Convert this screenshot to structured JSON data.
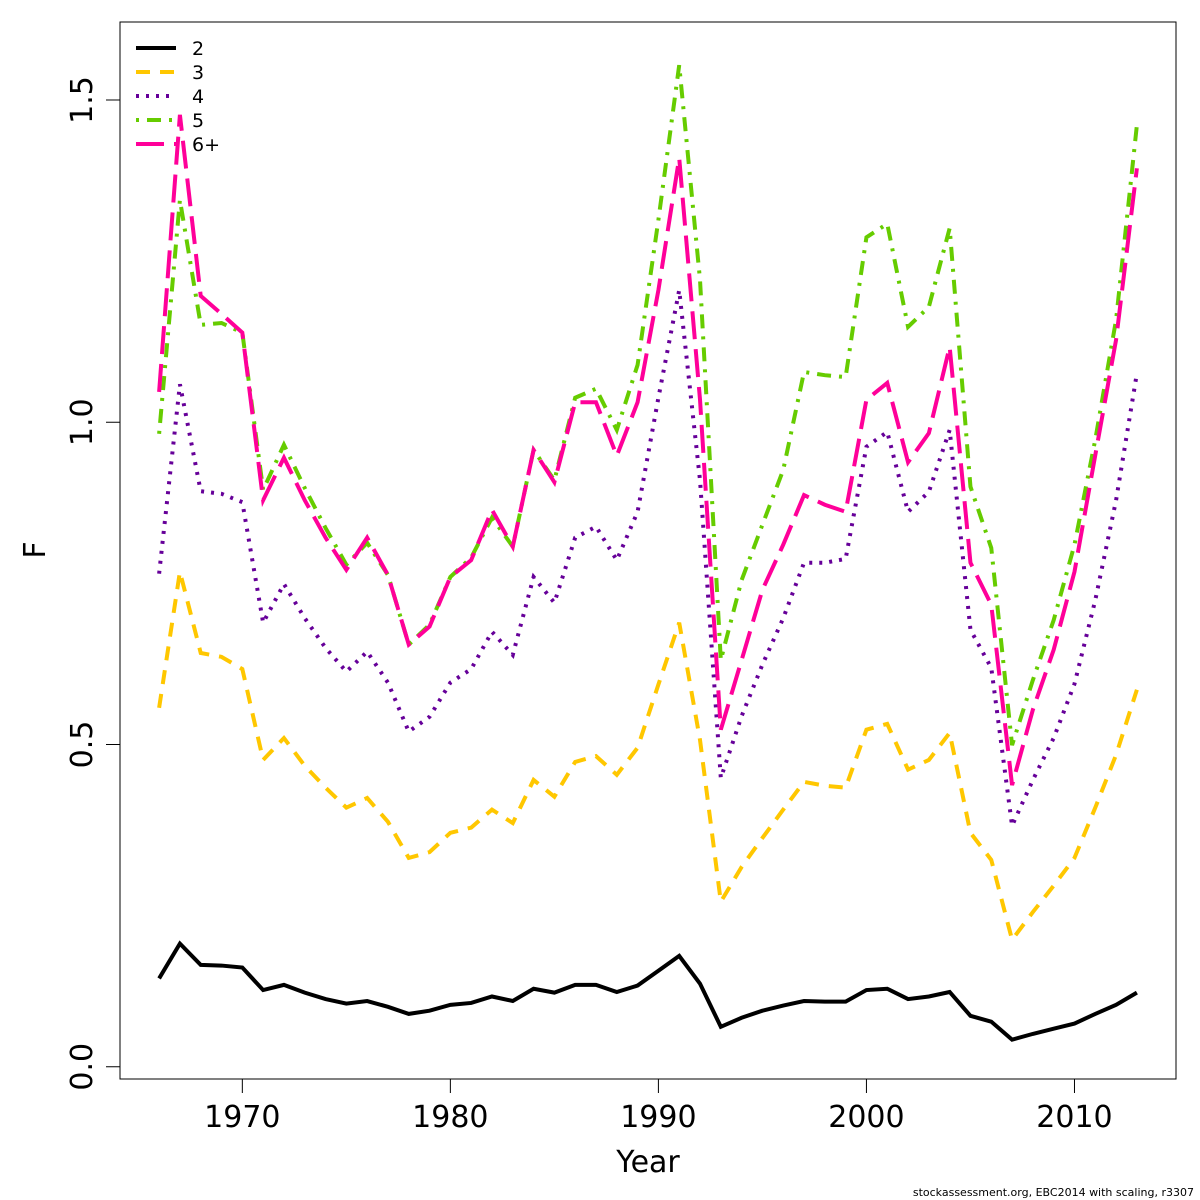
{
  "chart_data": {
    "type": "line",
    "xlabel": "Year",
    "ylabel": "F",
    "caption": "stockassessment.org, EBC2014 with scaling, r3307",
    "x": [
      1966,
      1967,
      1968,
      1969,
      1970,
      1971,
      1972,
      1973,
      1974,
      1975,
      1976,
      1977,
      1978,
      1979,
      1980,
      1981,
      1982,
      1983,
      1984,
      1985,
      1986,
      1987,
      1988,
      1989,
      1990,
      1991,
      1992,
      1993,
      1994,
      1995,
      1996,
      1997,
      1998,
      1999,
      2000,
      2001,
      2002,
      2003,
      2004,
      2005,
      2006,
      2007,
      2008,
      2009,
      2010,
      2011,
      2012,
      2013
    ],
    "xlim": [
      1964.12,
      2014.88
    ],
    "xticks": [
      1970,
      1980,
      1990,
      2000,
      2010
    ],
    "ylim": [
      -0.019,
      1.621
    ],
    "yticks": [
      {
        "value": 0,
        "label": "0.0"
      },
      0.5,
      {
        "value": 1,
        "label": "1.0"
      },
      1.5
    ],
    "legend": "top-left",
    "series": [
      {
        "name": "2",
        "color": "#000000",
        "dash": "solid",
        "values": [
          0.137,
          0.191,
          0.158,
          0.157,
          0.154,
          0.119,
          0.127,
          0.115,
          0.105,
          0.098,
          0.102,
          0.093,
          0.082,
          0.087,
          0.096,
          0.099,
          0.109,
          0.102,
          0.121,
          0.115,
          0.127,
          0.127,
          0.116,
          0.126,
          0.149,
          0.172,
          0.129,
          0.062,
          0.076,
          0.087,
          0.095,
          0.102,
          0.101,
          0.101,
          0.119,
          0.121,
          0.105,
          0.109,
          0.116,
          0.079,
          0.07,
          0.042,
          0.051,
          0.059,
          0.067,
          0.082,
          0.096,
          0.115
        ]
      },
      {
        "name": "3",
        "color": "#ffc700",
        "dash": "dashed",
        "values": [
          0.557,
          0.768,
          0.642,
          0.636,
          0.617,
          0.476,
          0.51,
          0.467,
          0.433,
          0.402,
          0.417,
          0.38,
          0.324,
          0.333,
          0.363,
          0.371,
          0.399,
          0.378,
          0.445,
          0.419,
          0.473,
          0.482,
          0.453,
          0.495,
          0.593,
          0.689,
          0.507,
          0.256,
          0.31,
          0.355,
          0.399,
          0.442,
          0.436,
          0.433,
          0.523,
          0.532,
          0.461,
          0.476,
          0.518,
          0.363,
          0.321,
          0.197,
          0.24,
          0.281,
          0.324,
          0.402,
          0.484,
          0.585
        ]
      },
      {
        "name": "4",
        "color": "#660099",
        "dash": "dotted",
        "values": [
          0.765,
          1.059,
          0.893,
          0.889,
          0.876,
          0.689,
          0.749,
          0.696,
          0.65,
          0.613,
          0.644,
          0.596,
          0.52,
          0.543,
          0.596,
          0.617,
          0.675,
          0.639,
          0.76,
          0.72,
          0.821,
          0.838,
          0.786,
          0.861,
          1.038,
          1.205,
          0.91,
          0.448,
          0.544,
          0.624,
          0.696,
          0.782,
          0.782,
          0.788,
          0.962,
          0.985,
          0.861,
          0.892,
          0.988,
          0.678,
          0.619,
          0.374,
          0.445,
          0.51,
          0.594,
          0.724,
          0.879,
          1.076
        ]
      },
      {
        "name": "5",
        "color": "#66cc00",
        "dash": "dotdash",
        "values": [
          0.982,
          1.345,
          1.151,
          1.154,
          1.139,
          0.895,
          0.965,
          0.898,
          0.836,
          0.779,
          0.813,
          0.763,
          0.655,
          0.686,
          0.76,
          0.79,
          0.852,
          0.807,
          0.957,
          0.91,
          1.038,
          1.052,
          0.988,
          1.089,
          1.314,
          1.554,
          1.221,
          0.631,
          0.755,
          0.841,
          0.926,
          1.078,
          1.073,
          1.07,
          1.287,
          1.308,
          1.148,
          1.179,
          1.301,
          0.9,
          0.805,
          0.499,
          0.6,
          0.693,
          0.81,
          0.973,
          1.159,
          1.461
        ]
      },
      {
        "name": "6+",
        "color": "#ff0099",
        "dash": "longdash",
        "values": [
          1.047,
          1.477,
          1.196,
          1.168,
          1.139,
          0.879,
          0.945,
          0.879,
          0.821,
          0.771,
          0.821,
          0.763,
          0.655,
          0.683,
          0.76,
          0.786,
          0.864,
          0.807,
          0.957,
          0.907,
          1.031,
          1.031,
          0.948,
          1.031,
          1.205,
          1.41,
          1.035,
          0.523,
          0.631,
          0.74,
          0.81,
          0.887,
          0.872,
          0.861,
          1.035,
          1.061,
          0.938,
          0.983,
          1.117,
          0.782,
          0.717,
          0.437,
          0.554,
          0.647,
          0.768,
          0.949,
          1.128,
          1.394
        ]
      }
    ]
  }
}
